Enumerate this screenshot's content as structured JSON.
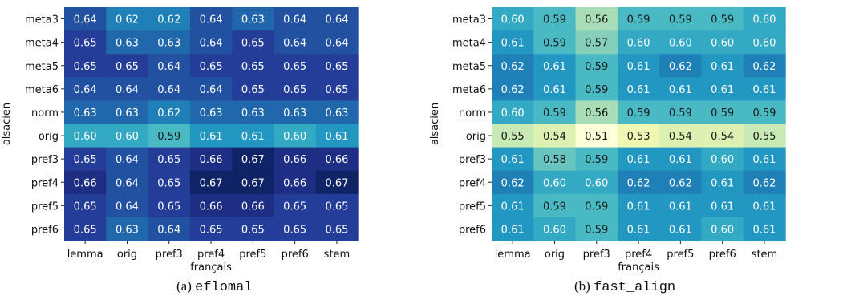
{
  "figure": {
    "captions": [
      {
        "prefix": "(a)",
        "name": "eflomal"
      },
      {
        "prefix": "(b)",
        "name": "fast_align"
      }
    ]
  },
  "colors": {
    "colormap": "YlGnBu",
    "text_dark": "#1a1a1a",
    "text_light": "#ffffff"
  },
  "chart_data": [
    {
      "type": "heatmap",
      "title": "",
      "xlabel": "français",
      "ylabel": "alsacien",
      "x": [
        "lemma",
        "orig",
        "pref3",
        "pref4",
        "pref5",
        "pref6",
        "stem"
      ],
      "y": [
        "meta3",
        "meta4",
        "meta5",
        "meta6",
        "norm",
        "orig",
        "pref3",
        "pref4",
        "pref5",
        "pref6"
      ],
      "values": [
        [
          0.64,
          0.62,
          0.62,
          0.64,
          0.63,
          0.64,
          0.64
        ],
        [
          0.65,
          0.63,
          0.63,
          0.64,
          0.65,
          0.64,
          0.64
        ],
        [
          0.65,
          0.65,
          0.64,
          0.65,
          0.65,
          0.65,
          0.65
        ],
        [
          0.64,
          0.64,
          0.64,
          0.64,
          0.65,
          0.65,
          0.65
        ],
        [
          0.63,
          0.63,
          0.62,
          0.63,
          0.63,
          0.63,
          0.63
        ],
        [
          0.6,
          0.6,
          0.59,
          0.61,
          0.61,
          0.6,
          0.61
        ],
        [
          0.65,
          0.64,
          0.65,
          0.66,
          0.67,
          0.66,
          0.66
        ],
        [
          0.66,
          0.64,
          0.65,
          0.67,
          0.67,
          0.66,
          0.67
        ],
        [
          0.65,
          0.64,
          0.65,
          0.66,
          0.66,
          0.65,
          0.65
        ],
        [
          0.65,
          0.63,
          0.64,
          0.65,
          0.65,
          0.65,
          0.65
        ]
      ],
      "vmin": 0.51,
      "vmax": 0.675
    },
    {
      "type": "heatmap",
      "title": "",
      "xlabel": "français",
      "ylabel": "alsacien",
      "x": [
        "lemma",
        "orig",
        "pref3",
        "pref4",
        "pref5",
        "pref6",
        "stem"
      ],
      "y": [
        "meta3",
        "meta4",
        "meta5",
        "meta6",
        "norm",
        "orig",
        "pref3",
        "pref4",
        "pref5",
        "pref6"
      ],
      "values": [
        [
          0.6,
          0.59,
          0.56,
          0.59,
          0.59,
          0.59,
          0.6
        ],
        [
          0.61,
          0.59,
          0.57,
          0.6,
          0.6,
          0.6,
          0.6
        ],
        [
          0.62,
          0.61,
          0.59,
          0.61,
          0.62,
          0.61,
          0.62
        ],
        [
          0.62,
          0.61,
          0.59,
          0.61,
          0.61,
          0.61,
          0.61
        ],
        [
          0.6,
          0.59,
          0.56,
          0.59,
          0.59,
          0.59,
          0.59
        ],
        [
          0.55,
          0.54,
          0.51,
          0.53,
          0.54,
          0.54,
          0.55
        ],
        [
          0.61,
          0.58,
          0.59,
          0.61,
          0.61,
          0.6,
          0.61
        ],
        [
          0.62,
          0.6,
          0.6,
          0.62,
          0.62,
          0.61,
          0.62
        ],
        [
          0.61,
          0.59,
          0.59,
          0.61,
          0.61,
          0.61,
          0.61
        ],
        [
          0.61,
          0.6,
          0.59,
          0.61,
          0.61,
          0.6,
          0.61
        ]
      ],
      "vmin": 0.51,
      "vmax": 0.675
    }
  ]
}
